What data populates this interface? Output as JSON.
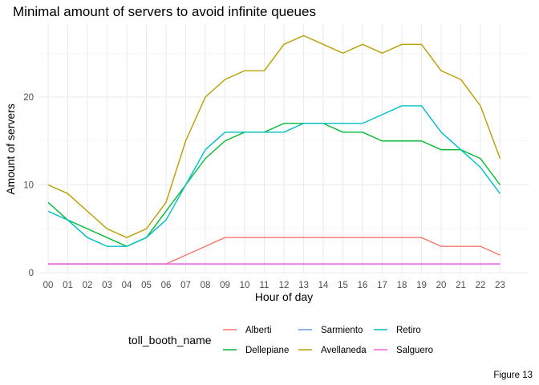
{
  "chart_data": {
    "type": "line",
    "title": "Minimal amount of servers to avoid infinite queues",
    "xlabel": "Hour of day",
    "ylabel": "Amount of servers",
    "caption": "Figure 13",
    "categories": [
      "00",
      "01",
      "02",
      "03",
      "04",
      "05",
      "06",
      "07",
      "08",
      "09",
      "10",
      "11",
      "12",
      "13",
      "14",
      "15",
      "16",
      "17",
      "18",
      "19",
      "20",
      "21",
      "22",
      "23"
    ],
    "ylim": [
      0,
      28
    ],
    "yticks": [
      0,
      10,
      20
    ],
    "grid": true,
    "legend_title": "toll_booth_name",
    "legend_position": "bottom",
    "series": [
      {
        "name": "Alberti",
        "color": "#F8766D",
        "values": [
          1,
          1,
          1,
          1,
          1,
          1,
          1,
          2,
          3,
          4,
          4,
          4,
          4,
          4,
          4,
          4,
          4,
          4,
          4,
          4,
          3,
          3,
          3,
          2
        ]
      },
      {
        "name": "Avellaneda",
        "color": "#B79F00",
        "values": [
          10,
          9,
          7,
          5,
          4,
          5,
          8,
          15,
          20,
          22,
          23,
          23,
          26,
          27,
          26,
          25,
          26,
          25,
          26,
          26,
          23,
          22,
          19,
          13
        ]
      },
      {
        "name": "Dellepiane",
        "color": "#00BA38",
        "values": [
          8,
          6,
          5,
          4,
          3,
          4,
          7,
          10,
          13,
          15,
          16,
          16,
          17,
          17,
          17,
          16,
          16,
          15,
          15,
          15,
          14,
          14,
          13,
          10
        ]
      },
      {
        "name": "Retiro",
        "color": "#00BFC4",
        "values": [
          7,
          6,
          4,
          3,
          3,
          4,
          6,
          10,
          14,
          16,
          16,
          16,
          16,
          17,
          17,
          17,
          17,
          18,
          19,
          19,
          16,
          14,
          12,
          9
        ]
      },
      {
        "name": "Sarmiento",
        "color": "#619CFF",
        "values": [
          1,
          1,
          1,
          1,
          1,
          1,
          1,
          1,
          1,
          1,
          1,
          1,
          1,
          1,
          1,
          1,
          1,
          1,
          1,
          1,
          1,
          1,
          1,
          1
        ]
      },
      {
        "name": "Salguero",
        "color": "#F564E3",
        "values": [
          1,
          1,
          1,
          1,
          1,
          1,
          1,
          1,
          1,
          1,
          1,
          1,
          1,
          1,
          1,
          1,
          1,
          1,
          1,
          1,
          1,
          1,
          1,
          1
        ]
      }
    ],
    "legend_order": [
      "Alberti",
      "Dellepiane",
      "Sarmiento",
      "Avellaneda",
      "Retiro",
      "Salguero"
    ]
  }
}
